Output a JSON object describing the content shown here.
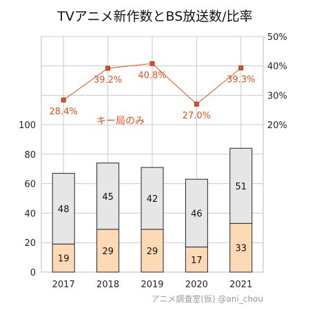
{
  "chart_data": {
    "type": "bar",
    "title": "TVアニメ新作数とBS放送数/比率",
    "categories": [
      "2017",
      "2018",
      "2019",
      "2020",
      "2021"
    ],
    "series": [
      {
        "values": [
          19,
          29,
          29,
          17,
          33
        ],
        "color": "#fdd9b5"
      },
      {
        "values": [
          48,
          45,
          42,
          46,
          51
        ],
        "color": "#e6e6e6"
      },
      {
        "values": [
          28.4,
          39.2,
          40.8,
          27.0,
          39.3
        ],
        "color": "#e8501a"
      }
    ],
    "bar_value_labels": [
      [
        "19",
        "29",
        "29",
        "17",
        "33"
      ],
      [
        "48",
        "45",
        "42",
        "46",
        "51"
      ]
    ],
    "rate_labels": [
      "28.4%",
      "39.2%",
      "40.8%",
      "27.0%",
      "39.3%"
    ],
    "y_left": {
      "ticks": [
        "0",
        "20",
        "40",
        "60",
        "80",
        "100"
      ],
      "min": 0,
      "max": 100
    },
    "y_right": {
      "ticks": [
        "20%",
        "30%",
        "40%",
        "50%"
      ],
      "min": 20,
      "max": 50
    },
    "annotation": "キー局のみ",
    "grid": true
  },
  "credit": "アニメ調査室(仮) @ani_chou"
}
